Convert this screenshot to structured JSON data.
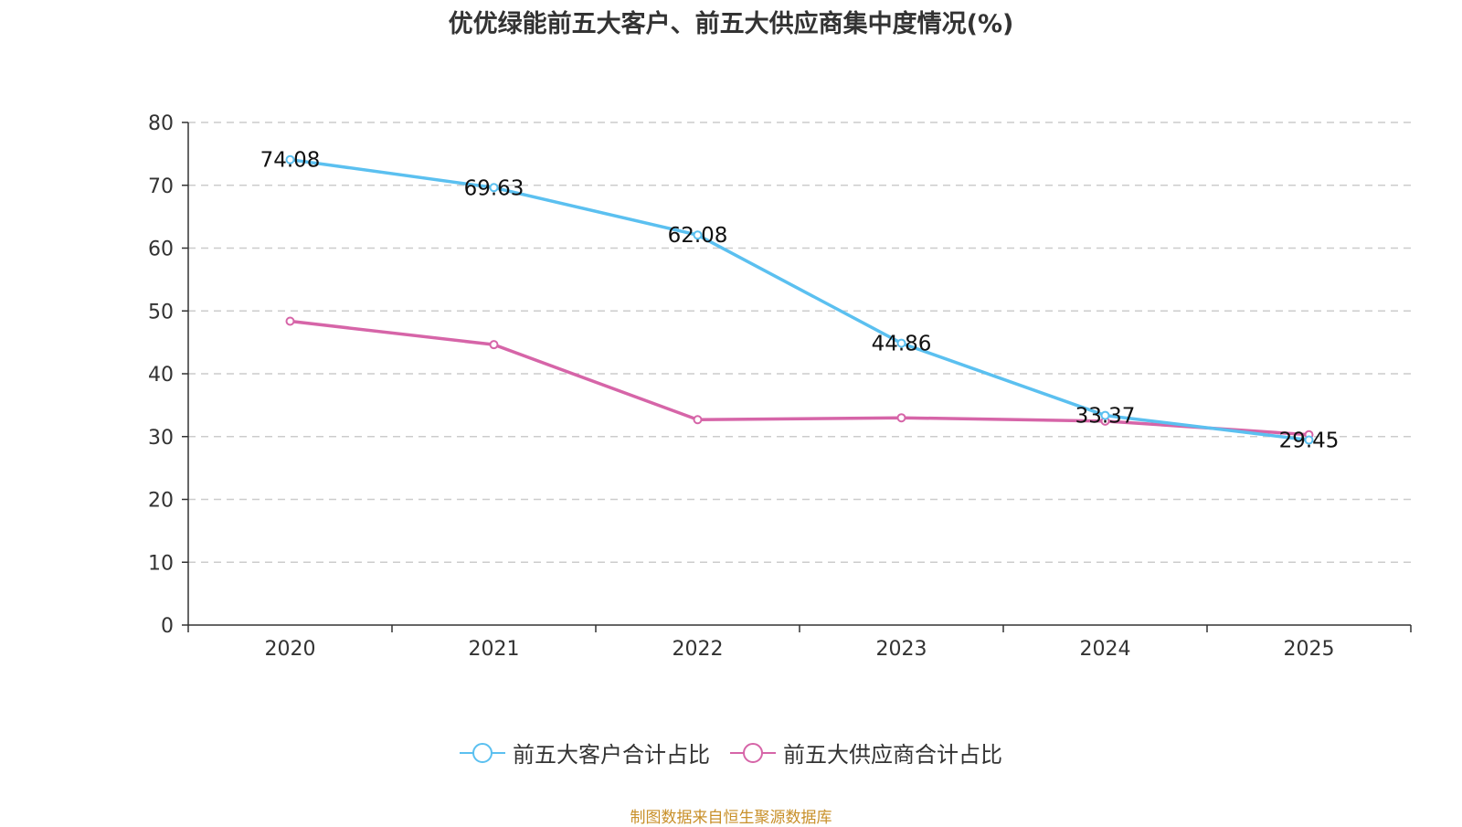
{
  "chart_data": {
    "type": "line",
    "title": "优优绿能前五大客户、前五大供应商集中度情况(%)",
    "xlabel": "",
    "ylabel": "",
    "x": [
      "2020",
      "2021",
      "2022",
      "2023",
      "2024",
      "2025"
    ],
    "ylim": [
      0,
      80
    ],
    "yticks": [
      "0",
      "10",
      "20",
      "30",
      "40",
      "50",
      "60",
      "70",
      "80"
    ],
    "grid": true,
    "legend_position": "bottom",
    "series": [
      {
        "name": "前五大客户合计占比",
        "color": "#5bc0f0",
        "values": [
          74.08,
          69.63,
          62.08,
          44.86,
          33.37,
          29.45
        ],
        "labels": [
          "74.08",
          "69.63",
          "62.08",
          "44.86",
          "33.37",
          "29.45"
        ]
      },
      {
        "name": "前五大供应商合计占比",
        "color": "#d665a8",
        "values": [
          48.36,
          44.63,
          32.69,
          32.99,
          32.46,
          30.3
        ],
        "labels": []
      }
    ]
  },
  "source": "制图数据来自恒生聚源数据库"
}
